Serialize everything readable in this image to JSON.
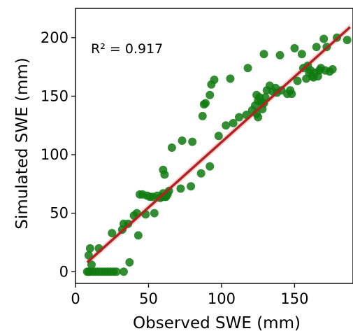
{
  "chart_data": {
    "type": "scatter",
    "xlabel": "Observed SWE (mm)",
    "ylabel": "Simulated SWE (mm)",
    "annotation": "R² = 0.917",
    "xlim": [
      0,
      190
    ],
    "ylim": [
      -10,
      225
    ],
    "xticks": [
      0,
      50,
      100,
      150
    ],
    "yticks": [
      0,
      50,
      100,
      150,
      200
    ],
    "grid": false,
    "point_color": "#0f7a0f",
    "fit_color": "#b22222",
    "fit_band_color": "#e8b4b4",
    "fit_line": {
      "x": [
        8,
        188
      ],
      "y": [
        8,
        209
      ]
    },
    "points": [
      [
        8,
        0
      ],
      [
        9,
        0
      ],
      [
        10,
        0
      ],
      [
        12,
        0
      ],
      [
        14,
        0
      ],
      [
        16,
        0
      ],
      [
        18,
        0
      ],
      [
        20,
        0
      ],
      [
        22,
        0
      ],
      [
        24,
        0
      ],
      [
        26,
        0
      ],
      [
        28,
        0
      ],
      [
        33,
        0
      ],
      [
        10,
        20
      ],
      [
        9,
        14
      ],
      [
        11,
        6
      ],
      [
        16,
        20
      ],
      [
        25,
        33
      ],
      [
        32,
        36
      ],
      [
        33,
        41
      ],
      [
        36,
        41
      ],
      [
        37,
        8
      ],
      [
        40,
        48
      ],
      [
        42,
        50
      ],
      [
        43,
        31
      ],
      [
        44,
        66
      ],
      [
        46,
        66
      ],
      [
        48,
        49
      ],
      [
        49,
        65
      ],
      [
        51,
        64
      ],
      [
        53,
        64
      ],
      [
        54,
        50
      ],
      [
        56,
        65
      ],
      [
        58,
        63
      ],
      [
        59,
        64
      ],
      [
        60,
        67
      ],
      [
        60,
        87
      ],
      [
        61,
        83
      ],
      [
        61,
        64
      ],
      [
        62,
        64
      ],
      [
        63,
        66
      ],
      [
        64,
        69
      ],
      [
        66,
        106
      ],
      [
        72,
        71
      ],
      [
        73,
        112
      ],
      [
        79,
        73
      ],
      [
        80,
        111
      ],
      [
        86,
        84
      ],
      [
        87,
        133
      ],
      [
        88,
        143
      ],
      [
        89,
        144
      ],
      [
        92,
        90
      ],
      [
        92,
        151
      ],
      [
        93,
        160
      ],
      [
        95,
        164
      ],
      [
        98,
        116
      ],
      [
        103,
        125
      ],
      [
        106,
        165
      ],
      [
        108,
        127
      ],
      [
        112,
        132
      ],
      [
        117,
        134
      ],
      [
        118,
        174
      ],
      [
        121,
        138
      ],
      [
        123,
        142
      ],
      [
        124,
        135
      ],
      [
        124,
        151
      ],
      [
        125,
        132
      ],
      [
        125,
        146
      ],
      [
        126,
        149
      ],
      [
        127,
        145
      ],
      [
        128,
        139
      ],
      [
        129,
        186
      ],
      [
        129,
        144
      ],
      [
        130,
        149
      ],
      [
        131,
        155
      ],
      [
        133,
        159
      ],
      [
        135,
        154
      ],
      [
        137,
        157
      ],
      [
        138,
        153
      ],
      [
        140,
        185
      ],
      [
        141,
        155
      ],
      [
        145,
        152
      ],
      [
        147,
        155
      ],
      [
        148,
        152
      ],
      [
        150,
        191
      ],
      [
        152,
        163
      ],
      [
        155,
        186
      ],
      [
        156,
        174
      ],
      [
        158,
        165
      ],
      [
        159,
        176
      ],
      [
        160,
        170
      ],
      [
        161,
        172
      ],
      [
        162,
        167
      ],
      [
        163,
        166
      ],
      [
        164,
        170
      ],
      [
        165,
        192
      ],
      [
        166,
        167
      ],
      [
        167,
        172
      ],
      [
        168,
        174
      ],
      [
        170,
        199
      ],
      [
        171,
        172
      ],
      [
        172,
        192
      ],
      [
        174,
        171
      ],
      [
        176,
        173
      ],
      [
        179,
        200
      ],
      [
        186,
        198
      ]
    ]
  }
}
